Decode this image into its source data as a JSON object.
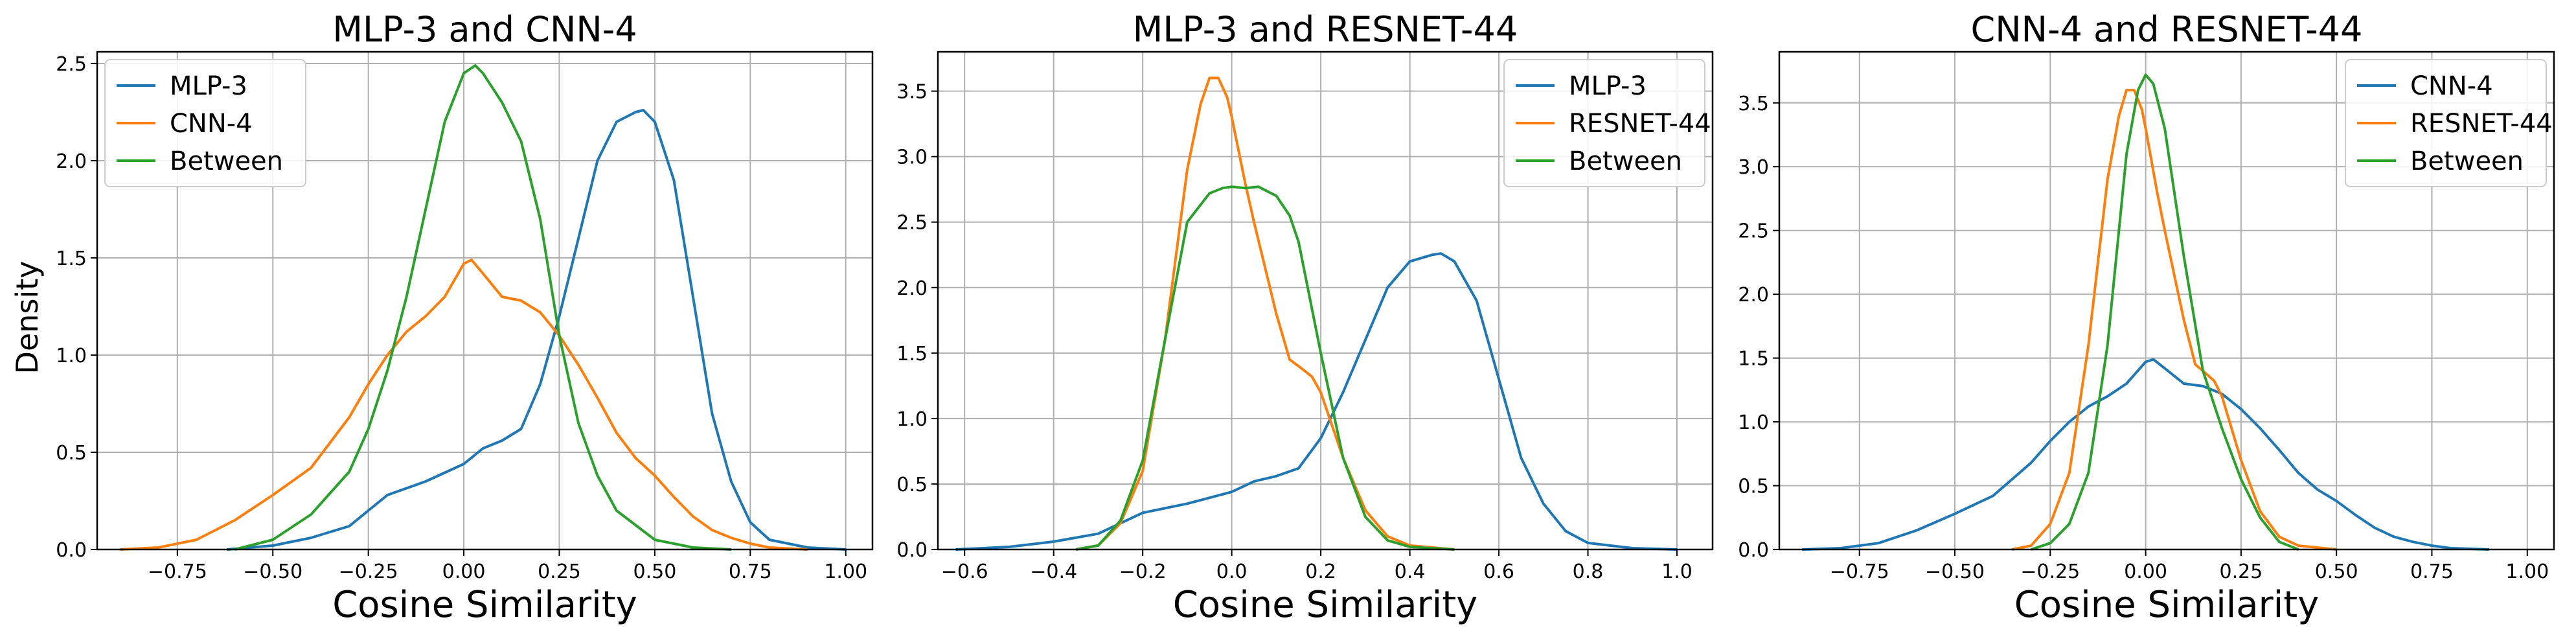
{
  "ylabel": "Density",
  "chart_data": [
    {
      "type": "line",
      "title": "MLP-3 and CNN-4",
      "xlabel": "Cosine Similarity",
      "ylabel": "Density",
      "xlim": [
        -0.96,
        1.07
      ],
      "ylim": [
        0,
        2.56
      ],
      "xticks": [
        -0.75,
        -0.5,
        -0.25,
        0.0,
        0.25,
        0.5,
        0.75,
        1.0
      ],
      "xtick_labels": [
        "−0.75",
        "−0.50",
        "−0.25",
        "0.00",
        "0.25",
        "0.50",
        "0.75",
        "1.00"
      ],
      "yticks": [
        0.0,
        0.5,
        1.0,
        1.5,
        2.0,
        2.5
      ],
      "ytick_labels": [
        "0.0",
        "0.5",
        "1.0",
        "1.5",
        "2.0",
        "2.5"
      ],
      "grid": true,
      "legend_position": "top-left",
      "series": [
        {
          "name": "MLP-3",
          "color": "#1f77b4",
          "x": [
            -0.62,
            -0.5,
            -0.4,
            -0.3,
            -0.2,
            -0.1,
            0.0,
            0.05,
            0.1,
            0.15,
            0.2,
            0.25,
            0.3,
            0.35,
            0.4,
            0.45,
            0.47,
            0.5,
            0.55,
            0.6,
            0.65,
            0.7,
            0.75,
            0.8,
            0.9,
            1.0
          ],
          "y": [
            0.0,
            0.02,
            0.06,
            0.12,
            0.28,
            0.35,
            0.44,
            0.52,
            0.56,
            0.62,
            0.85,
            1.2,
            1.6,
            2.0,
            2.2,
            2.25,
            2.26,
            2.2,
            1.9,
            1.3,
            0.7,
            0.35,
            0.14,
            0.05,
            0.01,
            0.0
          ]
        },
        {
          "name": "CNN-4",
          "color": "#ff7f0e",
          "x": [
            -0.9,
            -0.8,
            -0.7,
            -0.6,
            -0.5,
            -0.4,
            -0.3,
            -0.25,
            -0.2,
            -0.15,
            -0.1,
            -0.05,
            0.0,
            0.02,
            0.05,
            0.1,
            0.15,
            0.2,
            0.25,
            0.3,
            0.35,
            0.4,
            0.45,
            0.5,
            0.55,
            0.6,
            0.65,
            0.7,
            0.75,
            0.8,
            0.9
          ],
          "y": [
            0.0,
            0.01,
            0.05,
            0.15,
            0.28,
            0.42,
            0.68,
            0.85,
            1.0,
            1.12,
            1.2,
            1.3,
            1.47,
            1.49,
            1.42,
            1.3,
            1.28,
            1.22,
            1.1,
            0.95,
            0.78,
            0.6,
            0.47,
            0.38,
            0.27,
            0.17,
            0.1,
            0.06,
            0.03,
            0.01,
            0.0
          ]
        },
        {
          "name": "Between",
          "color": "#2ca02c",
          "x": [
            -0.6,
            -0.5,
            -0.4,
            -0.3,
            -0.25,
            -0.2,
            -0.15,
            -0.1,
            -0.05,
            0.0,
            0.03,
            0.05,
            0.1,
            0.15,
            0.2,
            0.25,
            0.3,
            0.35,
            0.4,
            0.5,
            0.6,
            0.7
          ],
          "y": [
            0.0,
            0.05,
            0.18,
            0.4,
            0.62,
            0.92,
            1.3,
            1.75,
            2.2,
            2.45,
            2.49,
            2.45,
            2.3,
            2.1,
            1.7,
            1.1,
            0.65,
            0.38,
            0.2,
            0.05,
            0.01,
            0.0
          ]
        }
      ]
    },
    {
      "type": "line",
      "title": "MLP-3 and RESNET-44",
      "xlabel": "Cosine Similarity",
      "ylabel": "",
      "xlim": [
        -0.66,
        1.08
      ],
      "ylim": [
        0,
        3.8
      ],
      "xticks": [
        -0.6,
        -0.4,
        -0.2,
        0.0,
        0.2,
        0.4,
        0.6,
        0.8,
        1.0
      ],
      "xtick_labels": [
        "−0.6",
        "−0.4",
        "−0.2",
        "0.0",
        "0.2",
        "0.4",
        "0.6",
        "0.8",
        "1.0"
      ],
      "yticks": [
        0.0,
        0.5,
        1.0,
        1.5,
        2.0,
        2.5,
        3.0,
        3.5
      ],
      "ytick_labels": [
        "0.0",
        "0.5",
        "1.0",
        "1.5",
        "2.0",
        "2.5",
        "3.0",
        "3.5"
      ],
      "grid": true,
      "legend_position": "top-right",
      "series": [
        {
          "name": "MLP-3",
          "color": "#1f77b4",
          "x": [
            -0.62,
            -0.5,
            -0.4,
            -0.3,
            -0.2,
            -0.1,
            0.0,
            0.05,
            0.1,
            0.15,
            0.2,
            0.25,
            0.3,
            0.35,
            0.4,
            0.45,
            0.47,
            0.5,
            0.55,
            0.6,
            0.65,
            0.7,
            0.75,
            0.8,
            0.9,
            1.0
          ],
          "y": [
            0.0,
            0.02,
            0.06,
            0.12,
            0.28,
            0.35,
            0.44,
            0.52,
            0.56,
            0.62,
            0.85,
            1.2,
            1.6,
            2.0,
            2.2,
            2.25,
            2.26,
            2.2,
            1.9,
            1.3,
            0.7,
            0.35,
            0.14,
            0.05,
            0.01,
            0.0
          ]
        },
        {
          "name": "RESNET-44",
          "color": "#ff7f0e",
          "x": [
            -0.35,
            -0.3,
            -0.25,
            -0.2,
            -0.15,
            -0.1,
            -0.07,
            -0.05,
            -0.03,
            -0.01,
            0.0,
            0.03,
            0.05,
            0.1,
            0.13,
            0.15,
            0.18,
            0.2,
            0.25,
            0.3,
            0.35,
            0.4,
            0.5
          ],
          "y": [
            0.0,
            0.03,
            0.2,
            0.6,
            1.6,
            2.9,
            3.4,
            3.6,
            3.6,
            3.45,
            3.3,
            2.8,
            2.5,
            1.8,
            1.45,
            1.4,
            1.32,
            1.2,
            0.7,
            0.3,
            0.1,
            0.03,
            0.0
          ]
        },
        {
          "name": "Between",
          "color": "#2ca02c",
          "x": [
            -0.35,
            -0.3,
            -0.25,
            -0.2,
            -0.15,
            -0.1,
            -0.05,
            -0.02,
            0.0,
            0.03,
            0.06,
            0.1,
            0.13,
            0.15,
            0.2,
            0.25,
            0.3,
            0.35,
            0.4,
            0.5
          ],
          "y": [
            0.0,
            0.03,
            0.22,
            0.68,
            1.6,
            2.5,
            2.72,
            2.76,
            2.77,
            2.76,
            2.77,
            2.7,
            2.55,
            2.35,
            1.5,
            0.7,
            0.25,
            0.07,
            0.02,
            0.0
          ]
        }
      ]
    },
    {
      "type": "line",
      "title": "CNN-4 and RESNET-44",
      "xlabel": "Cosine Similarity",
      "ylabel": "",
      "xlim": [
        -0.96,
        1.07
      ],
      "ylim": [
        0,
        3.9
      ],
      "xticks": [
        -0.75,
        -0.5,
        -0.25,
        0.0,
        0.25,
        0.5,
        0.75,
        1.0
      ],
      "xtick_labels": [
        "−0.75",
        "−0.50",
        "−0.25",
        "0.00",
        "0.25",
        "0.50",
        "0.75",
        "1.00"
      ],
      "yticks": [
        0.0,
        0.5,
        1.0,
        1.5,
        2.0,
        2.5,
        3.0,
        3.5
      ],
      "ytick_labels": [
        "0.0",
        "0.5",
        "1.0",
        "1.5",
        "2.0",
        "2.5",
        "3.0",
        "3.5"
      ],
      "grid": true,
      "legend_position": "top-right",
      "series": [
        {
          "name": "CNN-4",
          "color": "#1f77b4",
          "x": [
            -0.9,
            -0.8,
            -0.7,
            -0.6,
            -0.5,
            -0.4,
            -0.3,
            -0.25,
            -0.2,
            -0.15,
            -0.1,
            -0.05,
            0.0,
            0.02,
            0.05,
            0.1,
            0.15,
            0.2,
            0.25,
            0.3,
            0.35,
            0.4,
            0.45,
            0.5,
            0.55,
            0.6,
            0.65,
            0.7,
            0.75,
            0.8,
            0.9
          ],
          "y": [
            0.0,
            0.01,
            0.05,
            0.15,
            0.28,
            0.42,
            0.68,
            0.85,
            1.0,
            1.12,
            1.2,
            1.3,
            1.47,
            1.49,
            1.42,
            1.3,
            1.28,
            1.22,
            1.1,
            0.95,
            0.78,
            0.6,
            0.47,
            0.38,
            0.27,
            0.17,
            0.1,
            0.06,
            0.03,
            0.01,
            0.0
          ]
        },
        {
          "name": "RESNET-44",
          "color": "#ff7f0e",
          "x": [
            -0.35,
            -0.3,
            -0.25,
            -0.2,
            -0.15,
            -0.1,
            -0.07,
            -0.05,
            -0.03,
            -0.01,
            0.0,
            0.03,
            0.05,
            0.1,
            0.13,
            0.15,
            0.18,
            0.2,
            0.25,
            0.3,
            0.35,
            0.4,
            0.5
          ],
          "y": [
            0.0,
            0.03,
            0.2,
            0.6,
            1.6,
            2.9,
            3.4,
            3.6,
            3.6,
            3.45,
            3.3,
            2.8,
            2.5,
            1.8,
            1.45,
            1.4,
            1.32,
            1.2,
            0.7,
            0.3,
            0.1,
            0.03,
            0.0
          ]
        },
        {
          "name": "Between",
          "color": "#2ca02c",
          "x": [
            -0.3,
            -0.25,
            -0.2,
            -0.15,
            -0.1,
            -0.05,
            -0.02,
            0.0,
            0.02,
            0.05,
            0.1,
            0.15,
            0.2,
            0.25,
            0.3,
            0.35,
            0.4
          ],
          "y": [
            0.0,
            0.05,
            0.2,
            0.6,
            1.6,
            3.1,
            3.6,
            3.72,
            3.65,
            3.3,
            2.3,
            1.4,
            0.95,
            0.55,
            0.25,
            0.06,
            0.0
          ]
        }
      ]
    }
  ]
}
